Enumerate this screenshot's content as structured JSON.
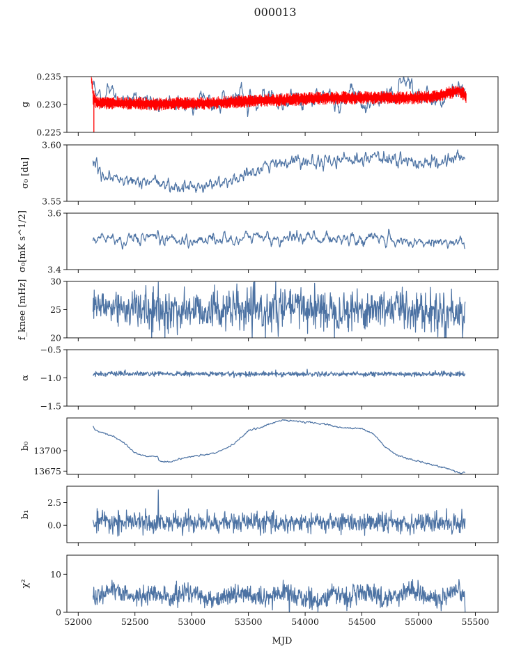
{
  "figure": {
    "title": "000013",
    "xlabel": "MJD",
    "series_color": "#4c72a3",
    "gain_overlay_color": "#ff0000"
  },
  "chart_data": [
    {
      "type": "line",
      "ylabel": "g",
      "xlim": [
        51900,
        55700
      ],
      "ylim": [
        0.225,
        0.235
      ],
      "yticks": [
        0.225,
        0.23,
        0.235
      ],
      "ytick_labels": [
        "0.225",
        "0.230",
        "0.235"
      ],
      "series": [
        {
          "color": "#4c72a3",
          "x_range": [
            52130,
            55410
          ],
          "anchors": [
            [
              52130,
              0.2343
            ],
            [
              52160,
              0.2322
            ],
            [
              52200,
              0.2306
            ],
            [
              52260,
              0.2328
            ],
            [
              52290,
              0.2342
            ],
            [
              52330,
              0.2318
            ],
            [
              52400,
              0.2304
            ],
            [
              52480,
              0.2315
            ],
            [
              52550,
              0.23
            ],
            [
              52620,
              0.231
            ],
            [
              52700,
              0.2296
            ],
            [
              52800,
              0.2304
            ],
            [
              52900,
              0.2302
            ],
            [
              53000,
              0.2295
            ],
            [
              53100,
              0.231
            ],
            [
              53200,
              0.23
            ],
            [
              53300,
              0.2313
            ],
            [
              53420,
              0.2326
            ],
            [
              53500,
              0.2304
            ],
            [
              53600,
              0.2308
            ],
            [
              53700,
              0.2318
            ],
            [
              53800,
              0.2302
            ],
            [
              53900,
              0.2314
            ],
            [
              54000,
              0.23
            ],
            [
              54100,
              0.2318
            ],
            [
              54200,
              0.231
            ],
            [
              54300,
              0.23
            ],
            [
              54400,
              0.2324
            ],
            [
              54450,
              0.2308
            ],
            [
              54500,
              0.2296
            ],
            [
              54550,
              0.2291
            ],
            [
              54600,
              0.2306
            ],
            [
              54700,
              0.2318
            ],
            [
              54800,
              0.2312
            ],
            [
              54880,
              0.2352
            ],
            [
              54940,
              0.2322
            ],
            [
              55000,
              0.231
            ],
            [
              55100,
              0.2314
            ],
            [
              55200,
              0.2306
            ],
            [
              55300,
              0.2326
            ],
            [
              55360,
              0.233
            ],
            [
              55410,
              0.2322
            ]
          ],
          "noise": 0.0011,
          "smooth": 3
        },
        {
          "color": "#ff0000",
          "x": [
            52115,
            52120,
            52126,
            52132,
            52138,
            52145,
            52153,
            52160,
            52180,
            52220,
            52300,
            52500,
            52700,
            52900,
            53100,
            53300,
            53500,
            53700,
            53900,
            54100,
            54300,
            54500,
            54700,
            54900,
            55100,
            55300,
            55350,
            55400,
            55420
          ],
          "y": [
            0.235,
            0.2338,
            0.233,
            0.231,
            0.2302,
            0.2311,
            0.2306,
            0.2304,
            0.2302,
            0.2303,
            0.2303,
            0.2302,
            0.2301,
            0.2302,
            0.2302,
            0.2304,
            0.2306,
            0.2308,
            0.2309,
            0.2311,
            0.2312,
            0.2312,
            0.2312,
            0.2312,
            0.2313,
            0.2322,
            0.2326,
            0.2318,
            0.231
          ],
          "band": 0.0012,
          "spike": {
            "x": 52138,
            "y_low": 0.2245
          }
        }
      ]
    },
    {
      "type": "line",
      "ylabel": "σ₀ [du]",
      "xlim": [
        51900,
        55700
      ],
      "ylim": [
        3.55,
        3.6
      ],
      "yticks": [
        3.55,
        3.6
      ],
      "ytick_labels": [
        "3.55",
        "3.60"
      ],
      "series": [
        {
          "color": "#4c72a3",
          "x_range": [
            52130,
            55410
          ],
          "anchors": [
            [
              52130,
              3.585
            ],
            [
              52200,
              3.575
            ],
            [
              52300,
              3.57
            ],
            [
              52500,
              3.567
            ],
            [
              52700,
              3.566
            ],
            [
              52900,
              3.562
            ],
            [
              53100,
              3.564
            ],
            [
              53300,
              3.567
            ],
            [
              53500,
              3.572
            ],
            [
              53600,
              3.58
            ],
            [
              53800,
              3.585
            ],
            [
              54000,
              3.587
            ],
            [
              54200,
              3.585
            ],
            [
              54400,
              3.587
            ],
            [
              54600,
              3.59
            ],
            [
              54800,
              3.586
            ],
            [
              55000,
              3.584
            ],
            [
              55200,
              3.584
            ],
            [
              55350,
              3.59
            ],
            [
              55410,
              3.587
            ]
          ],
          "noise": 0.0033,
          "smooth": 2
        }
      ]
    },
    {
      "type": "line",
      "ylabel": "σ₀[mK s^1/2]",
      "xlim": [
        51900,
        55700
      ],
      "ylim": [
        3.4,
        3.6
      ],
      "yticks": [
        3.4,
        3.6
      ],
      "ytick_labels": [
        "3.4",
        "3.6"
      ],
      "series": [
        {
          "color": "#4c72a3",
          "x_range": [
            52130,
            55410
          ],
          "anchors": [
            [
              52130,
              3.51
            ],
            [
              52300,
              3.51
            ],
            [
              52400,
              3.495
            ],
            [
              52600,
              3.505
            ],
            [
              52800,
              3.51
            ],
            [
              53000,
              3.5
            ],
            [
              53200,
              3.51
            ],
            [
              53400,
              3.505
            ],
            [
              53600,
              3.52
            ],
            [
              53800,
              3.505
            ],
            [
              54000,
              3.515
            ],
            [
              54200,
              3.51
            ],
            [
              54400,
              3.515
            ],
            [
              54500,
              3.505
            ],
            [
              54700,
              3.51
            ],
            [
              54800,
              3.5
            ],
            [
              55000,
              3.495
            ],
            [
              55200,
              3.505
            ],
            [
              55410,
              3.49
            ]
          ],
          "noise": 0.014,
          "smooth": 3
        }
      ]
    },
    {
      "type": "line",
      "ylabel": "f_knee [mHz]",
      "xlim": [
        51900,
        55700
      ],
      "ylim": [
        20,
        30
      ],
      "yticks": [
        20,
        25,
        30
      ],
      "ytick_labels": [
        "20",
        "25",
        "30"
      ],
      "series": [
        {
          "color": "#4c72a3",
          "x_range": [
            52130,
            55410
          ],
          "anchors": [
            [
              52130,
              25.5
            ],
            [
              52400,
              25.5
            ],
            [
              52700,
              24.5
            ],
            [
              53000,
              25.0
            ],
            [
              53300,
              25.0
            ],
            [
              53600,
              24.5
            ],
            [
              53900,
              25.5
            ],
            [
              54200,
              25.0
            ],
            [
              54500,
              25.0
            ],
            [
              54800,
              25.5
            ],
            [
              55100,
              24.5
            ],
            [
              55410,
              24.5
            ]
          ],
          "noise": 1.8,
          "smooth": 1
        }
      ]
    },
    {
      "type": "line",
      "ylabel": "α",
      "xlim": [
        51900,
        55700
      ],
      "ylim": [
        -1.5,
        -0.5
      ],
      "yticks": [
        -1.5,
        -1.0,
        -0.5
      ],
      "ytick_labels": [
        "−1.5",
        "−1.0",
        "−0.5"
      ],
      "series": [
        {
          "color": "#4c72a3",
          "x_range": [
            52130,
            55410
          ],
          "anchors": [
            [
              52130,
              -0.93
            ],
            [
              55410,
              -0.93
            ]
          ],
          "noise": 0.022,
          "smooth": 1
        }
      ]
    },
    {
      "type": "line",
      "ylabel": "b₀",
      "xlim": [
        51900,
        55700
      ],
      "ylim": [
        13671,
        13740
      ],
      "yticks": [
        13675,
        13700
      ],
      "ytick_labels": [
        "13675",
        "13700"
      ],
      "series": [
        {
          "color": "#4c72a3",
          "x_range": [
            52130,
            55410
          ],
          "anchors": [
            [
              52130,
              13730
            ],
            [
              52150,
              13725
            ],
            [
              52300,
              13718
            ],
            [
              52400,
              13710
            ],
            [
              52500,
              13697
            ],
            [
              52600,
              13693
            ],
            [
              52700,
              13693
            ],
            [
              52710,
              13688
            ],
            [
              52800,
              13686
            ],
            [
              52900,
              13690
            ],
            [
              53000,
              13693
            ],
            [
              53200,
              13697
            ],
            [
              53350,
              13706
            ],
            [
              53450,
              13718
            ],
            [
              53500,
              13725
            ],
            [
              53600,
              13728
            ],
            [
              53700,
              13733
            ],
            [
              53800,
              13738
            ],
            [
              53900,
              13736
            ],
            [
              54000,
              13735
            ],
            [
              54200,
              13732
            ],
            [
              54300,
              13728
            ],
            [
              54500,
              13727
            ],
            [
              54600,
              13721
            ],
            [
              54700,
              13705
            ],
            [
              54800,
              13695
            ],
            [
              54900,
              13690
            ],
            [
              55000,
              13687
            ],
            [
              55100,
              13684
            ],
            [
              55200,
              13680
            ],
            [
              55300,
              13676
            ],
            [
              55370,
              13672
            ],
            [
              55410,
              13674
            ]
          ],
          "noise": 0.6,
          "smooth": 2
        }
      ]
    },
    {
      "type": "line",
      "ylabel": "b₁",
      "xlim": [
        51900,
        55700
      ],
      "ylim": [
        -1.9,
        4.3
      ],
      "yticks": [
        0.0,
        2.5
      ],
      "ytick_labels": [
        "0.0",
        "2.5"
      ],
      "series": [
        {
          "color": "#4c72a3",
          "x_range": [
            52130,
            55410
          ],
          "anchors": [
            [
              52130,
              0.3
            ],
            [
              55410,
              0.3
            ]
          ],
          "noise": 0.55,
          "smooth": 1,
          "spike": {
            "x": 52705,
            "y": 3.9
          }
        }
      ]
    },
    {
      "type": "line",
      "ylabel": "χ²",
      "xlim": [
        51900,
        55700
      ],
      "ylim": [
        0,
        15
      ],
      "yticks": [
        0,
        10
      ],
      "ytick_labels": [
        "0",
        "10"
      ],
      "xticks": [
        52000,
        52500,
        53000,
        53500,
        54000,
        54500,
        55000,
        55500
      ],
      "xtick_labels": [
        "52000",
        "52500",
        "53000",
        "53500",
        "54000",
        "54500",
        "55000",
        "55500"
      ],
      "series": [
        {
          "color": "#4c72a3",
          "x_range": [
            52130,
            55410
          ],
          "anchors": [
            [
              52130,
              4.0
            ],
            [
              52300,
              6.0
            ],
            [
              52400,
              4.5
            ],
            [
              52550,
              4.0
            ],
            [
              52650,
              5.0
            ],
            [
              52800,
              3.5
            ],
            [
              52950,
              5.5
            ],
            [
              53100,
              4.0
            ],
            [
              53250,
              3.5
            ],
            [
              53350,
              5.0
            ],
            [
              53500,
              4.5
            ],
            [
              53650,
              3.0
            ],
            [
              53800,
              5.5
            ],
            [
              53950,
              4.0
            ],
            [
              54100,
              3.0
            ],
            [
              54250,
              5.0
            ],
            [
              54400,
              4.0
            ],
            [
              54550,
              5.5
            ],
            [
              54700,
              3.5
            ],
            [
              54800,
              4.5
            ],
            [
              54950,
              6.0
            ],
            [
              55100,
              4.0
            ],
            [
              55200,
              3.0
            ],
            [
              55350,
              5.5
            ],
            [
              55410,
              4.0
            ]
          ],
          "noise": 1.3,
          "smooth": 1
        }
      ]
    }
  ]
}
